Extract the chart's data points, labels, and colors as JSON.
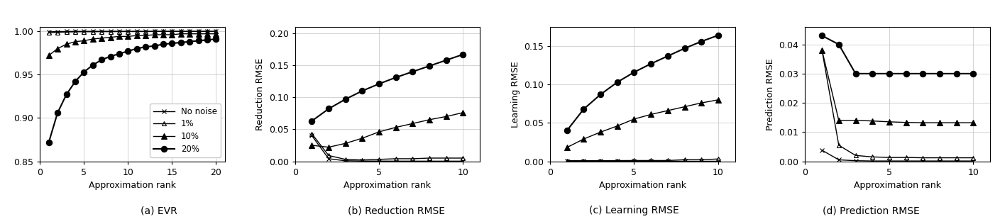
{
  "evr": {
    "x": [
      1,
      2,
      3,
      4,
      5,
      6,
      7,
      8,
      9,
      10,
      11,
      12,
      13,
      14,
      15,
      16,
      17,
      18,
      19,
      20
    ],
    "no_noise": [
      0.9993,
      0.9996,
      0.9997,
      0.9998,
      0.9998,
      0.9999,
      0.9999,
      0.9999,
      0.9999,
      0.9999,
      0.9999,
      0.9999,
      0.9999,
      0.9999,
      0.9999,
      0.9999,
      0.9999,
      0.9999,
      0.9999,
      0.9999
    ],
    "noise_1": [
      0.9983,
      0.9988,
      0.9991,
      0.9993,
      0.9994,
      0.9994,
      0.9995,
      0.9995,
      0.9996,
      0.9996,
      0.9996,
      0.9996,
      0.9997,
      0.9997,
      0.9997,
      0.9997,
      0.9997,
      0.9997,
      0.9997,
      0.9997
    ],
    "noise_10": [
      0.972,
      0.98,
      0.985,
      0.988,
      0.989,
      0.991,
      0.992,
      0.993,
      0.994,
      0.994,
      0.995,
      0.995,
      0.996,
      0.996,
      0.996,
      0.997,
      0.997,
      0.997,
      0.997,
      0.997
    ],
    "noise_20": [
      0.872,
      0.906,
      0.927,
      0.942,
      0.953,
      0.961,
      0.967,
      0.971,
      0.974,
      0.977,
      0.98,
      0.982,
      0.983,
      0.985,
      0.986,
      0.987,
      0.988,
      0.989,
      0.99,
      0.991
    ],
    "ylim": [
      0.85,
      1.005
    ],
    "yticks": [
      0.85,
      0.9,
      0.95,
      1.0
    ],
    "xlabel": "Approximation rank",
    "ylabel": "",
    "caption": "(a) EVR",
    "xlim": [
      0,
      21
    ],
    "xticks": [
      0,
      5,
      10,
      15,
      20
    ]
  },
  "reduction": {
    "x": [
      1,
      2,
      3,
      4,
      5,
      6,
      7,
      8,
      9,
      10
    ],
    "no_noise": [
      0.04,
      0.004,
      0.0008,
      0.0004,
      0.0003,
      0.0002,
      0.0002,
      0.0002,
      0.0002,
      0.0002
    ],
    "noise_1": [
      0.043,
      0.009,
      0.003,
      0.002,
      0.003,
      0.004,
      0.004,
      0.005,
      0.005,
      0.005
    ],
    "noise_10": [
      0.025,
      0.022,
      0.028,
      0.036,
      0.046,
      0.053,
      0.059,
      0.065,
      0.07,
      0.076
    ],
    "noise_20": [
      0.063,
      0.082,
      0.097,
      0.11,
      0.121,
      0.131,
      0.14,
      0.149,
      0.158,
      0.167
    ],
    "ylim": [
      0.0,
      0.21
    ],
    "yticks": [
      0.0,
      0.05,
      0.1,
      0.15,
      0.2
    ],
    "xlabel": "Approximation rank",
    "ylabel": "Reduction RMSE",
    "caption": "(b) Reduction RMSE",
    "xlim": [
      0,
      11
    ],
    "xticks": [
      0,
      5,
      10
    ]
  },
  "learning": {
    "x": [
      1,
      2,
      3,
      4,
      5,
      6,
      7,
      8,
      9,
      10
    ],
    "no_noise": [
      0.0005,
      0.0005,
      0.0005,
      0.0005,
      0.0005,
      0.0005,
      0.0005,
      0.0005,
      0.0005,
      0.0005
    ],
    "noise_1": [
      0.0008,
      0.0008,
      0.0008,
      0.0009,
      0.001,
      0.001,
      0.001,
      0.002,
      0.002,
      0.003
    ],
    "noise_10": [
      0.018,
      0.029,
      0.038,
      0.046,
      0.055,
      0.061,
      0.066,
      0.071,
      0.076,
      0.08
    ],
    "noise_20": [
      0.04,
      0.068,
      0.087,
      0.103,
      0.116,
      0.127,
      0.137,
      0.147,
      0.156,
      0.164
    ],
    "ylim": [
      0.0,
      0.175
    ],
    "yticks": [
      0.0,
      0.05,
      0.1,
      0.15
    ],
    "xlabel": "Approximation rank",
    "ylabel": "Learning RMSE",
    "caption": "(c) Learning RMSE",
    "xlim": [
      0,
      11
    ],
    "xticks": [
      0,
      5,
      10
    ]
  },
  "prediction": {
    "x": [
      1,
      2,
      3,
      4,
      5,
      6,
      7,
      8,
      9,
      10
    ],
    "no_noise": [
      0.0038,
      0.0005,
      0.0002,
      0.0001,
      0.0001,
      0.0001,
      0.0001,
      0.0001,
      0.0001,
      0.0001
    ],
    "noise_1": [
      0.038,
      0.0055,
      0.002,
      0.0015,
      0.0013,
      0.0013,
      0.0012,
      0.0012,
      0.0012,
      0.0012
    ],
    "noise_10": [
      0.038,
      0.014,
      0.014,
      0.0138,
      0.0135,
      0.0133,
      0.0132,
      0.0132,
      0.0132,
      0.0132
    ],
    "noise_20": [
      0.043,
      0.04,
      0.03,
      0.03,
      0.03,
      0.03,
      0.03,
      0.03,
      0.03,
      0.03
    ],
    "ylim": [
      0.0,
      0.046
    ],
    "yticks": [
      0.0,
      0.01,
      0.02,
      0.03,
      0.04
    ],
    "xlabel": "Approximation rank",
    "ylabel": "Prediction RMSE",
    "caption": "(d) Prediction RMSE",
    "xlim": [
      0,
      11
    ],
    "xticks": [
      0,
      5,
      10
    ]
  },
  "legend_labels": [
    "No noise",
    "1%",
    "10%",
    "20%"
  ],
  "colors": [
    "black",
    "black",
    "black",
    "black"
  ],
  "markers": [
    "x",
    "^",
    "^",
    "o"
  ],
  "markersizes": [
    5,
    5,
    6,
    6
  ],
  "fillstyles": [
    "none",
    "none",
    "full",
    "full"
  ],
  "linewidths": [
    1.0,
    1.0,
    1.0,
    1.5
  ]
}
